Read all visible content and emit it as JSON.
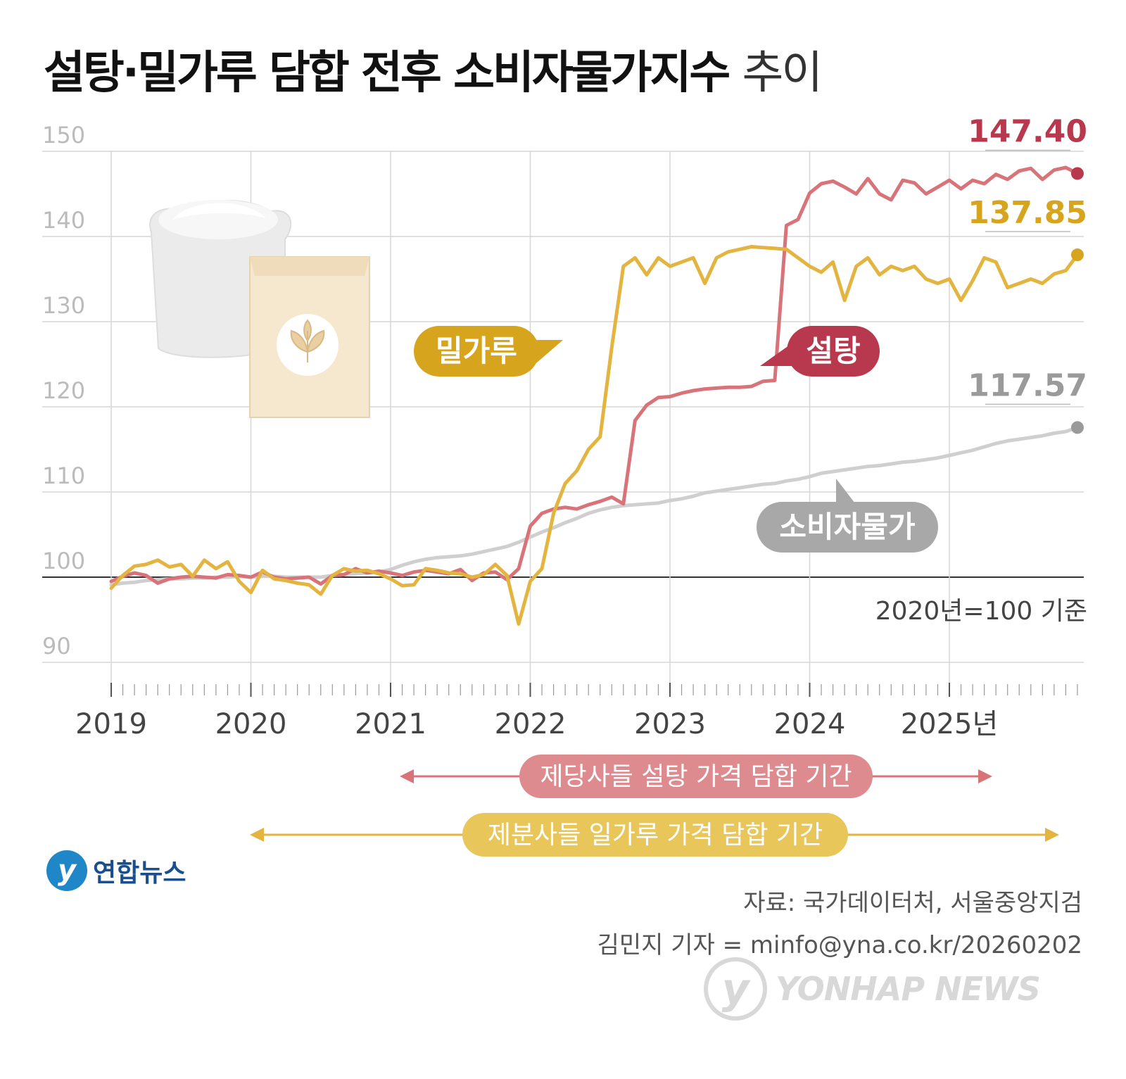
{
  "title": {
    "main": "설탕·밀가루 담합 전후 소비자물가지수",
    "suffix": "추이"
  },
  "colors": {
    "sugar": "#d9737a",
    "sugar_label": "#b8384d",
    "flour": "#e3b43f",
    "flour_label": "#d6a41d",
    "cpi": "#cfcfcf",
    "cpi_label": "#9a9a9a"
  },
  "chart_data": {
    "type": "line",
    "x_unit": "month",
    "x_start": "2019-01",
    "x_end": "2025-12",
    "ylim": [
      88,
      150
    ],
    "yticks": [
      90,
      100,
      110,
      120,
      130,
      140,
      150
    ],
    "baseline": 100,
    "xticks": [
      "2019",
      "2020",
      "2021",
      "2022",
      "2023",
      "2024",
      "2025년"
    ],
    "grid": true,
    "note": "2020년=100 기준",
    "series": [
      {
        "key": "sugar",
        "name": "설탕",
        "end_label": "147.40",
        "values": [
          99.5,
          100.1,
          100.5,
          100.2,
          99.3,
          99.8,
          100.0,
          100.1,
          100.0,
          99.9,
          100.3,
          100.2,
          100.0,
          100.6,
          100.0,
          99.8,
          99.9,
          100.0,
          99.2,
          100.2,
          100.3,
          101.0,
          100.5,
          100.7,
          100.5,
          100.2,
          100.6,
          100.8,
          100.6,
          100.4,
          100.9,
          99.6,
          100.5,
          100.6,
          99.7,
          101.0,
          106.0,
          107.5,
          108.0,
          108.2,
          108.0,
          108.5,
          108.9,
          109.4,
          108.6,
          118.4,
          120.2,
          121.1,
          121.2,
          121.6,
          121.9,
          122.1,
          122.2,
          122.3,
          122.3,
          122.4,
          123.0,
          123.1,
          141.3,
          142.0,
          145.1,
          146.2,
          146.5,
          145.8,
          145.0,
          146.8,
          145.0,
          144.3,
          146.6,
          146.3,
          145.0,
          145.8,
          146.6,
          145.6,
          146.6,
          146.2,
          147.3,
          146.7,
          147.7,
          148.0,
          146.7,
          147.8,
          148.1,
          147.4
        ]
      },
      {
        "key": "flour",
        "name": "밀가루",
        "end_label": "137.85",
        "values": [
          98.7,
          100.2,
          101.3,
          101.5,
          102.0,
          101.2,
          101.5,
          100.1,
          102.0,
          101.0,
          101.8,
          99.5,
          98.2,
          100.8,
          99.8,
          99.6,
          99.3,
          99.1,
          98.0,
          100.2,
          101.0,
          100.7,
          100.8,
          100.4,
          99.8,
          99.0,
          99.1,
          101.0,
          100.8,
          100.5,
          100.4,
          100.0,
          100.3,
          101.5,
          100.2,
          94.5,
          99.5,
          101.0,
          107.5,
          111.0,
          112.5,
          115.0,
          116.5,
          127.0,
          136.5,
          137.5,
          135.5,
          137.5,
          136.5,
          137.0,
          137.5,
          134.5,
          137.5,
          138.2,
          138.5,
          138.8,
          138.7,
          138.6,
          138.5,
          137.5,
          136.5,
          135.8,
          137.0,
          132.5,
          136.5,
          137.5,
          135.5,
          136.5,
          136.0,
          136.5,
          135.0,
          134.5,
          135.0,
          132.5,
          134.8,
          137.5,
          137.0,
          134.0,
          134.5,
          135.0,
          134.5,
          135.6,
          136.0,
          137.85
        ]
      },
      {
        "key": "cpi",
        "name": "소비자물가",
        "end_label": "117.57",
        "values": [
          99.1,
          99.3,
          99.4,
          99.6,
          99.7,
          99.8,
          99.8,
          99.9,
          99.9,
          100.0,
          100.0,
          100.1,
          100.0,
          100.1,
          100.1,
          100.0,
          100.0,
          100.0,
          100.0,
          100.2,
          100.3,
          100.4,
          100.5,
          100.6,
          100.9,
          101.4,
          101.8,
          102.1,
          102.3,
          102.4,
          102.5,
          102.7,
          103.0,
          103.3,
          103.6,
          104.1,
          104.7,
          105.3,
          105.8,
          106.4,
          106.9,
          107.5,
          107.9,
          108.2,
          108.4,
          108.5,
          108.6,
          108.7,
          109.0,
          109.2,
          109.5,
          109.9,
          110.1,
          110.3,
          110.5,
          110.7,
          110.9,
          111.0,
          111.3,
          111.5,
          111.8,
          112.2,
          112.4,
          112.6,
          112.8,
          113.0,
          113.1,
          113.3,
          113.5,
          113.6,
          113.8,
          114.0,
          114.3,
          114.6,
          114.9,
          115.3,
          115.7,
          116.0,
          116.2,
          116.4,
          116.6,
          116.9,
          117.1,
          117.57
        ]
      }
    ]
  },
  "callouts": {
    "flour": "밀가루",
    "sugar": "설탕",
    "cpi": "소비자물가"
  },
  "periods": {
    "sugar": "제당사들 설탕 가격 담합 기간",
    "flour": "제분사들 일가루 가격 담합 기간"
  },
  "footer": {
    "source": "자료: 국가데이터처, 서울중앙지검",
    "byline": "김민지 기자 = minfo@yna.co.kr/20260202"
  },
  "logo": {
    "text": "연합뉴스",
    "watermark": "YONHAP NEWS"
  }
}
